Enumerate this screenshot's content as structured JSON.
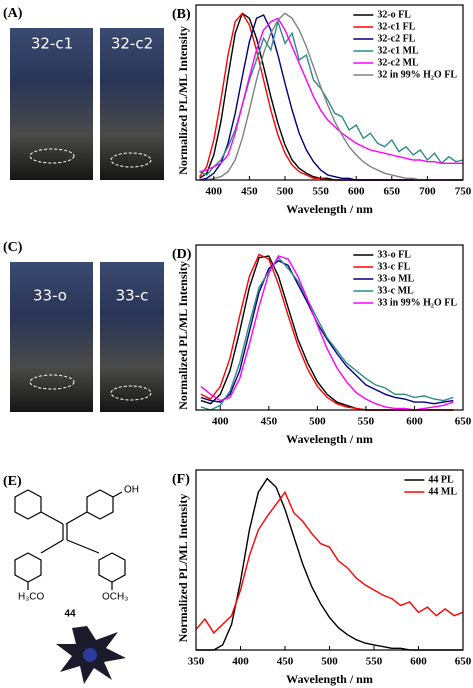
{
  "panels": {
    "A": {
      "label": "(A)",
      "photos": [
        "32-c1",
        "32-c2"
      ]
    },
    "C": {
      "label": "(C)",
      "photos": [
        "33-o",
        "33-c"
      ]
    },
    "E": {
      "label": "(E)",
      "compound": "44",
      "groups": [
        "OH",
        "H₃CO",
        "OCH₃"
      ]
    }
  },
  "chart_data": [
    {
      "type": "line",
      "panel_label": "(B)",
      "x_label": "Wavelength / nm",
      "y_label": "Normalized PL/ML Intensity",
      "xlim": [
        375,
        750
      ],
      "xticks": [
        400,
        450,
        500,
        550,
        600,
        650,
        700,
        750
      ],
      "ylim": [
        0,
        1.05
      ],
      "legend": "upper right",
      "x": [
        380,
        390,
        400,
        410,
        420,
        430,
        440,
        450,
        460,
        470,
        480,
        490,
        500,
        510,
        520,
        530,
        540,
        550,
        560,
        570,
        580,
        590,
        600,
        610,
        620,
        630,
        640,
        650,
        660,
        670,
        680,
        690,
        700,
        710,
        720,
        730,
        740,
        750
      ],
      "series": [
        {
          "name": "32-o FL",
          "color": "#000000",
          "values": [
            0.01,
            0.04,
            0.15,
            0.35,
            0.62,
            0.88,
            1.0,
            0.97,
            0.85,
            0.68,
            0.5,
            0.34,
            0.21,
            0.12,
            0.07,
            0.04,
            0.02,
            0.01,
            0.01,
            0,
            0,
            0,
            0,
            0,
            0,
            0,
            0,
            0,
            0,
            0,
            0,
            0,
            0,
            0,
            0,
            0,
            0,
            0
          ]
        },
        {
          "name": "32-c1 FL",
          "color": "#ff0000",
          "values": [
            0.02,
            0.08,
            0.24,
            0.48,
            0.75,
            0.95,
            1.0,
            0.93,
            0.78,
            0.6,
            0.42,
            0.27,
            0.16,
            0.09,
            0.05,
            0.03,
            0.01,
            0.01,
            0,
            0,
            0,
            0,
            0,
            0,
            0,
            0,
            0,
            0,
            0,
            0,
            0,
            0,
            0,
            0,
            0,
            0,
            0,
            0
          ]
        },
        {
          "name": "32-c2 FL",
          "color": "#000080",
          "values": [
            0,
            0.01,
            0.04,
            0.1,
            0.22,
            0.4,
            0.62,
            0.83,
            0.97,
            0.99,
            0.9,
            0.75,
            0.58,
            0.42,
            0.28,
            0.18,
            0.11,
            0.06,
            0.03,
            0.02,
            0.01,
            0.01,
            0,
            0,
            0,
            0,
            0,
            0,
            0,
            0,
            0,
            0,
            0,
            0,
            0,
            0,
            0,
            0
          ]
        },
        {
          "name": "32-c1 ML",
          "color": "#2e8b87",
          "values": [
            0.05,
            0.03,
            0.08,
            0.12,
            0.2,
            0.3,
            0.45,
            0.6,
            0.72,
            0.85,
            0.78,
            0.95,
            0.82,
            0.88,
            0.72,
            0.75,
            0.6,
            0.55,
            0.48,
            0.4,
            0.38,
            0.3,
            0.33,
            0.25,
            0.28,
            0.22,
            0.2,
            0.24,
            0.17,
            0.2,
            0.15,
            0.18,
            0.12,
            0.16,
            0.1,
            0.14,
            0.11,
            0.12
          ]
        },
        {
          "name": "32-c2 ML",
          "color": "#ff00ff",
          "values": [
            0.05,
            0.06,
            0.08,
            0.1,
            0.15,
            0.28,
            0.45,
            0.62,
            0.78,
            0.9,
            0.95,
            0.97,
            0.9,
            0.8,
            0.7,
            0.6,
            0.5,
            0.42,
            0.36,
            0.32,
            0.28,
            0.25,
            0.22,
            0.2,
            0.18,
            0.17,
            0.16,
            0.15,
            0.14,
            0.13,
            0.12,
            0.12,
            0.11,
            0.11,
            0.1,
            0.1,
            0.1,
            0.1
          ]
        },
        {
          "name": "32 in 99% H₂O FL",
          "color": "#808080",
          "values": [
            0,
            0,
            0.01,
            0.02,
            0.05,
            0.12,
            0.25,
            0.42,
            0.6,
            0.76,
            0.88,
            0.96,
            1.0,
            0.97,
            0.9,
            0.8,
            0.68,
            0.56,
            0.45,
            0.35,
            0.27,
            0.2,
            0.15,
            0.11,
            0.08,
            0.06,
            0.04,
            0.03,
            0.02,
            0.01,
            0.01,
            0,
            0,
            0,
            0,
            0,
            0,
            0
          ]
        }
      ]
    },
    {
      "type": "line",
      "panel_label": "(D)",
      "x_label": "Wavelength / nm",
      "y_label": "Normalized PL/ML Intensity",
      "xlim": [
        375,
        650
      ],
      "xticks": [
        400,
        450,
        500,
        550,
        600,
        650
      ],
      "ylim": [
        0,
        1.05
      ],
      "legend": "upper right",
      "x": [
        380,
        390,
        400,
        410,
        420,
        430,
        440,
        450,
        460,
        470,
        480,
        490,
        500,
        510,
        520,
        530,
        540,
        550,
        560,
        570,
        580,
        590,
        600,
        610,
        620,
        630,
        640
      ],
      "series": [
        {
          "name": "33-o FL",
          "color": "#000000",
          "values": [
            0.06,
            0.04,
            0.1,
            0.25,
            0.5,
            0.78,
            0.97,
            0.98,
            0.85,
            0.65,
            0.45,
            0.3,
            0.18,
            0.1,
            0.05,
            0.03,
            0.01,
            0,
            0,
            0,
            0,
            0,
            0,
            0,
            0,
            0,
            0
          ]
        },
        {
          "name": "33-c FL",
          "color": "#ff0000",
          "values": [
            0.1,
            0.07,
            0.15,
            0.33,
            0.6,
            0.85,
            0.99,
            0.96,
            0.8,
            0.6,
            0.41,
            0.26,
            0.15,
            0.08,
            0.04,
            0.02,
            0.01,
            0,
            0,
            0,
            0,
            0,
            0,
            0,
            0,
            0,
            0
          ]
        },
        {
          "name": "33-o ML",
          "color": "#000080",
          "values": [
            0.08,
            0.06,
            0.05,
            0.1,
            0.25,
            0.5,
            0.75,
            0.9,
            0.95,
            0.92,
            0.8,
            0.68,
            0.55,
            0.45,
            0.36,
            0.28,
            0.22,
            0.16,
            0.13,
            0.1,
            0.08,
            0.07,
            0.05,
            0.05,
            0.04,
            0.05,
            0.06
          ]
        },
        {
          "name": "33-c ML",
          "color": "#2e8b87",
          "values": [
            0.02,
            0,
            0.03,
            0.12,
            0.3,
            0.55,
            0.78,
            0.88,
            0.97,
            0.9,
            0.82,
            0.7,
            0.58,
            0.46,
            0.38,
            0.3,
            0.25,
            0.2,
            0.16,
            0.14,
            0.1,
            0.1,
            0.08,
            0.09,
            0.07,
            0.06,
            0.08
          ]
        },
        {
          "name": "33 in 99% H₂O FL",
          "color": "#ff00ff",
          "values": [
            0.15,
            0.1,
            0.06,
            0.08,
            0.2,
            0.42,
            0.66,
            0.87,
            0.98,
            0.96,
            0.85,
            0.7,
            0.54,
            0.39,
            0.27,
            0.18,
            0.11,
            0.07,
            0.04,
            0.02,
            0.01,
            0.01,
            0,
            0.01,
            0.02,
            0.03,
            0.05
          ]
        }
      ]
    },
    {
      "type": "line",
      "panel_label": "(F)",
      "x_label": "Wavelength / nm",
      "y_label": "Normalized PL/ML Intensity",
      "xlim": [
        350,
        650
      ],
      "xticks": [
        350,
        400,
        450,
        500,
        550,
        600,
        650
      ],
      "ylim": [
        0,
        1.05
      ],
      "legend": "upper right",
      "x": [
        350,
        360,
        370,
        380,
        390,
        400,
        410,
        420,
        430,
        440,
        450,
        460,
        470,
        480,
        490,
        500,
        510,
        520,
        530,
        540,
        550,
        560,
        570,
        580,
        590,
        600,
        610,
        620,
        630,
        640,
        650
      ],
      "series": [
        {
          "name": "44 PL",
          "color": "#000000",
          "values": [
            0,
            0,
            0,
            0.03,
            0.15,
            0.4,
            0.7,
            0.92,
            1.0,
            0.95,
            0.82,
            0.66,
            0.5,
            0.37,
            0.27,
            0.19,
            0.13,
            0.09,
            0.06,
            0.04,
            0.03,
            0.02,
            0.01,
            0.01,
            0,
            0,
            0,
            0,
            0,
            0,
            0
          ]
        },
        {
          "name": "44 ML",
          "color": "#ff0000",
          "values": [
            0.12,
            0.18,
            0.1,
            0.15,
            0.2,
            0.35,
            0.55,
            0.7,
            0.78,
            0.85,
            0.92,
            0.8,
            0.75,
            0.68,
            0.62,
            0.6,
            0.52,
            0.48,
            0.42,
            0.38,
            0.35,
            0.32,
            0.3,
            0.26,
            0.28,
            0.22,
            0.25,
            0.2,
            0.24,
            0.2,
            0.22
          ]
        }
      ]
    }
  ]
}
